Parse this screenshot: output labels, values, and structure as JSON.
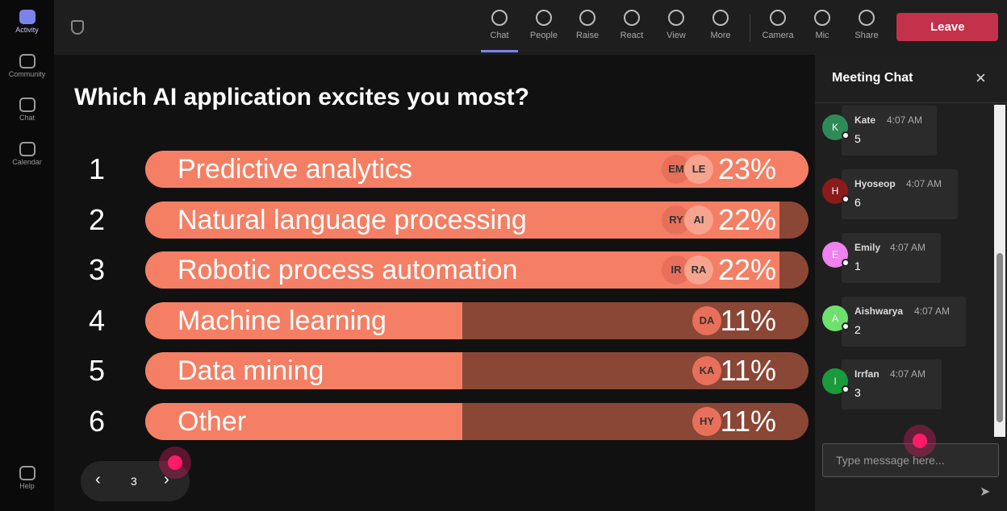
{
  "rail": [
    "Activity",
    "Community",
    "Chat",
    "Calendar",
    "Help"
  ],
  "toolbar": [
    "Chat",
    "People",
    "Raise",
    "React",
    "View",
    "More",
    "Camera",
    "Mic",
    "Share"
  ],
  "leave": "Leave",
  "poll": {
    "question": "Which AI application excites you most?",
    "options": [
      {
        "rank": "1",
        "label": "Predictive analytics",
        "value": 23,
        "value_label": "23%",
        "avatars": [
          "EM",
          "LE"
        ]
      },
      {
        "rank": "2",
        "label": "Natural language processing",
        "value": 22,
        "value_label": "22%",
        "avatars": [
          "RY",
          "AI"
        ]
      },
      {
        "rank": "3",
        "label": "Robotic process automation",
        "value": 22,
        "value_label": "22%",
        "avatars": [
          "IR",
          "RA"
        ]
      },
      {
        "rank": "4",
        "label": "Machine learning",
        "value": 11,
        "value_label": "11%",
        "avatars": [
          "DA"
        ]
      },
      {
        "rank": "5",
        "label": "Data mining",
        "value": 11,
        "value_label": "11%",
        "avatars": [
          "KA"
        ]
      },
      {
        "rank": "6",
        "label": "Other",
        "value": 11,
        "value_label": "11%",
        "avatars": [
          "HY"
        ]
      }
    ]
  },
  "pager": {
    "page": "3"
  },
  "chat": {
    "title": "Meeting Chat",
    "messages": [
      {
        "initial": "K",
        "name": "Kate",
        "time": "4:07 AM",
        "text": "5",
        "color": "#2e8b57"
      },
      {
        "initial": "H",
        "name": "Hyoseop",
        "time": "4:07 AM",
        "text": "6",
        "color": "#8b1a1a"
      },
      {
        "initial": "E",
        "name": "Emily",
        "time": "4:07 AM",
        "text": "1",
        "color": "#ee82ee"
      },
      {
        "initial": "A",
        "name": "Aishwarya",
        "time": "4:07 AM",
        "text": "2",
        "color": "#6ee06e"
      },
      {
        "initial": "I",
        "name": "Irrfan",
        "time": "4:07 AM",
        "text": "3",
        "color": "#1a9a3a"
      }
    ],
    "placeholder": "Type message here..."
  }
}
